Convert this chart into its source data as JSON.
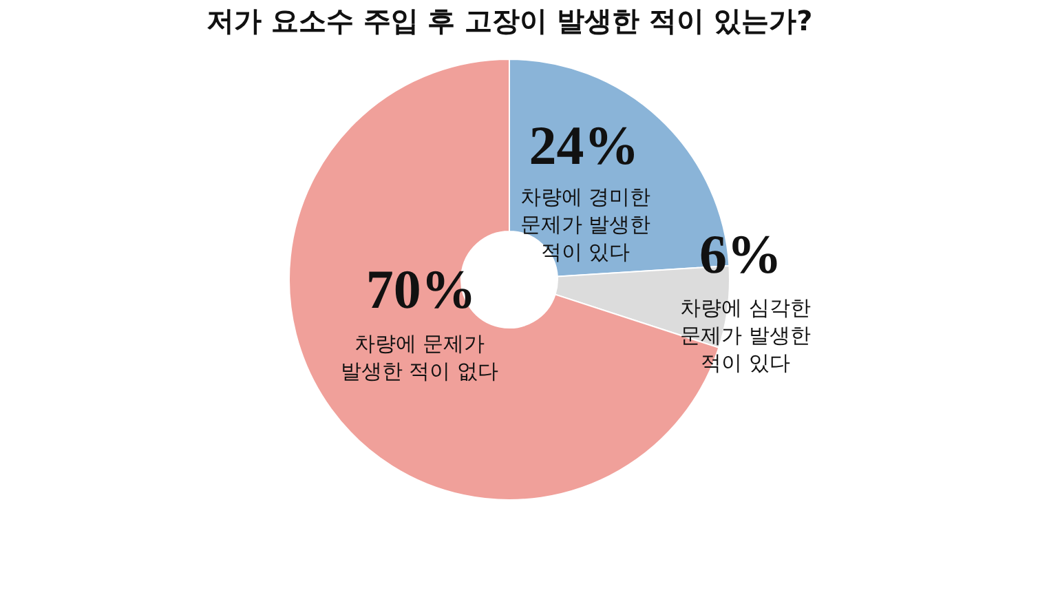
{
  "chart_data": {
    "type": "donut",
    "title": "저가 요소수 주입 후 고장이 발생한 적이 있는가?",
    "categories": [
      "차량에 경미한 문제가 발생한 적이 있다",
      "차량에 심각한 문제가 발생한 적이 있다",
      "차량에 문제가 발생한 적이 없다"
    ],
    "values": [
      24,
      6,
      70
    ],
    "colors": [
      "#8ab4d8",
      "#dcdcdc",
      "#f0a09a"
    ],
    "value_labels": [
      "24%",
      "6%",
      "70%"
    ],
    "legend": false
  }
}
